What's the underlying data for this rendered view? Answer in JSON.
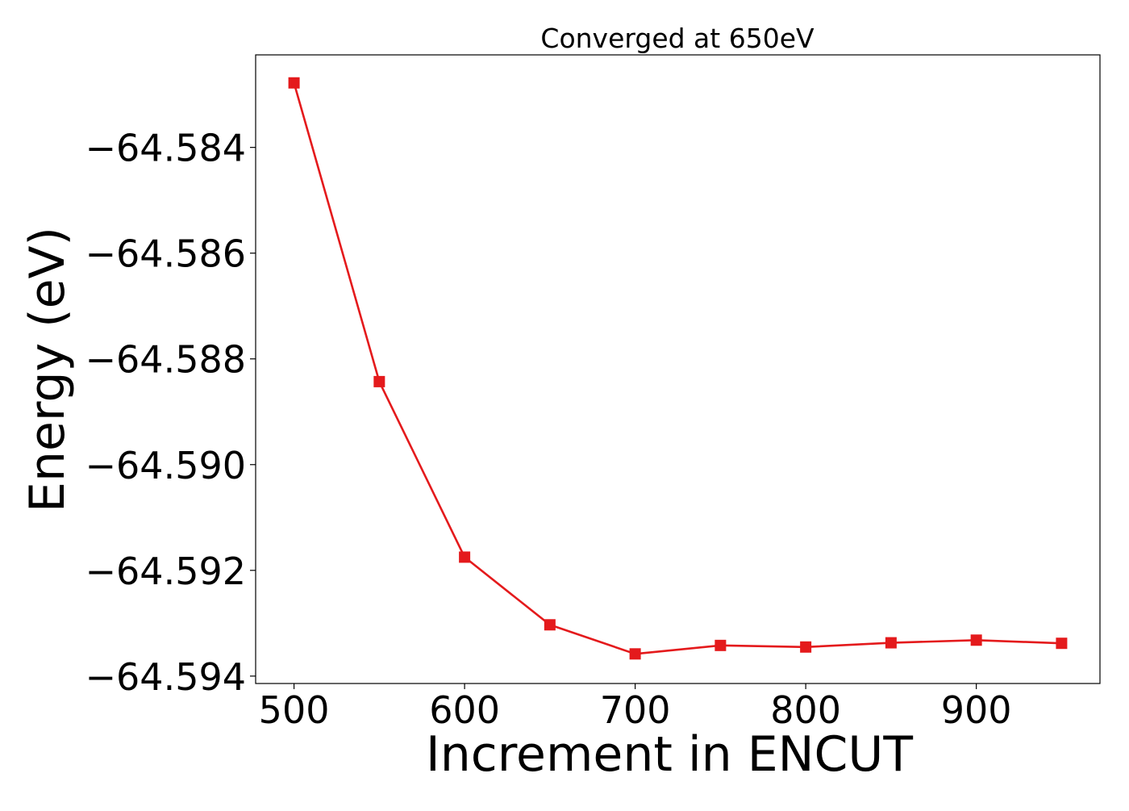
{
  "chart_data": {
    "type": "line",
    "title": "Converged at 650eV",
    "xlabel": "Increment in ENCUT",
    "ylabel": "Energy (eV)",
    "xlim": [
      477.5,
      972.5
    ],
    "ylim": [
      -64.59414,
      -64.58225
    ],
    "x_ticks": [
      500,
      600,
      700,
      800,
      900
    ],
    "x_tick_labels": [
      "500",
      "600",
      "700",
      "800",
      "900"
    ],
    "y_ticks": [
      -64.584,
      -64.586,
      -64.588,
      -64.59,
      -64.592,
      -64.594
    ],
    "y_tick_labels": [
      "−64.584",
      "−64.586",
      "−64.588",
      "−64.590",
      "−64.592",
      "−64.594"
    ],
    "grid": false,
    "series": [
      {
        "color": "#e41a1c",
        "marker": "square",
        "x": [
          500,
          550,
          600,
          650,
          700,
          750,
          800,
          850,
          900,
          950
        ],
        "y": [
          -64.58278,
          -64.58843,
          -64.59175,
          -64.59303,
          -64.59358,
          -64.59342,
          -64.59345,
          -64.59337,
          -64.59332,
          -64.59338
        ]
      }
    ]
  }
}
